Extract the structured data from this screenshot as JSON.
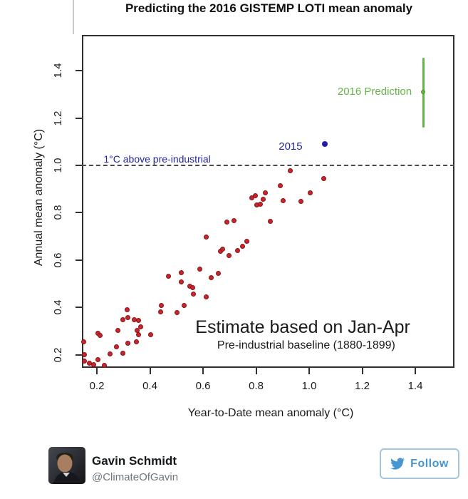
{
  "chart_data": {
    "type": "scatter",
    "title": "Predicting the 2016 GISTEMP LOTI mean anomaly",
    "xlabel": "Year-to-Date mean anomaly (°C)",
    "ylabel": "Annual mean anomaly (°C)",
    "xlim": [
      0.145,
      1.55
    ],
    "ylim": [
      0.145,
      1.55
    ],
    "x_ticks": [
      0.2,
      0.4,
      0.6,
      0.8,
      1.0,
      1.2,
      1.4
    ],
    "y_ticks": [
      0.2,
      0.4,
      0.6,
      0.8,
      1.0,
      1.2,
      1.4
    ],
    "grid": false,
    "legend_position": "none",
    "reference_line": {
      "y": 1.0,
      "style": "dashed",
      "color": "#4a4a4a",
      "label": "1°C above pre-industrial"
    },
    "series": [
      {
        "name": "historical-years",
        "color": "#c9252c",
        "marker": "circle",
        "points": [
          [
            0.785,
            0.864
          ],
          [
            0.796,
            0.871
          ],
          [
            0.834,
            0.883
          ],
          [
            0.828,
            0.858
          ],
          [
            0.804,
            0.834
          ],
          [
            0.815,
            0.837
          ],
          [
            0.93,
            0.976
          ],
          [
            1.054,
            0.943
          ],
          [
            0.89,
            0.913
          ],
          [
            0.901,
            0.852
          ],
          [
            0.968,
            0.849
          ],
          [
            1.003,
            0.883
          ],
          [
            0.855,
            0.765
          ],
          [
            0.764,
            0.678
          ],
          [
            0.691,
            0.762
          ],
          [
            0.718,
            0.768
          ],
          [
            0.611,
            0.696
          ],
          [
            0.667,
            0.636
          ],
          [
            0.675,
            0.645
          ],
          [
            0.699,
            0.62
          ],
          [
            0.729,
            0.639
          ],
          [
            0.748,
            0.657
          ],
          [
            0.587,
            0.563
          ],
          [
            0.659,
            0.545
          ],
          [
            0.63,
            0.527
          ],
          [
            0.471,
            0.533
          ],
          [
            0.519,
            0.548
          ],
          [
            0.517,
            0.509
          ],
          [
            0.549,
            0.488
          ],
          [
            0.56,
            0.482
          ],
          [
            0.565,
            0.455
          ],
          [
            0.611,
            0.443
          ],
          [
            0.444,
            0.407
          ],
          [
            0.439,
            0.38
          ],
          [
            0.528,
            0.407
          ],
          [
            0.501,
            0.377
          ],
          [
            0.315,
            0.389
          ],
          [
            0.297,
            0.349
          ],
          [
            0.318,
            0.358
          ],
          [
            0.34,
            0.349
          ],
          [
            0.356,
            0.346
          ],
          [
            0.366,
            0.319
          ],
          [
            0.278,
            0.304
          ],
          [
            0.205,
            0.292
          ],
          [
            0.213,
            0.283
          ],
          [
            0.353,
            0.304
          ],
          [
            0.358,
            0.286
          ],
          [
            0.404,
            0.286
          ],
          [
            0.149,
            0.256
          ],
          [
            0.35,
            0.256
          ],
          [
            0.318,
            0.247
          ],
          [
            0.275,
            0.232
          ],
          [
            0.251,
            0.202
          ],
          [
            0.299,
            0.205
          ],
          [
            0.154,
            0.199
          ],
          [
            0.152,
            0.172
          ],
          [
            0.173,
            0.163
          ],
          [
            0.203,
            0.178
          ],
          [
            0.189,
            0.157
          ],
          [
            0.227,
            0.154
          ]
        ]
      },
      {
        "name": "year-2015",
        "label": "2015",
        "color": "#2121a8",
        "marker": "circle",
        "points": [
          [
            1.06,
            1.09
          ]
        ]
      },
      {
        "name": "prediction-2016",
        "label": "2016 Prediction",
        "color": "#64b446",
        "marker": "circle-with-error-bar",
        "point": [
          1.43,
          1.31
        ],
        "error_range": [
          1.16,
          1.455
        ]
      }
    ],
    "annotations": [
      {
        "name": "ref-line-label",
        "text": "1°C above pre-industrial",
        "x": 0.427,
        "y": 1.027,
        "color": "#24249c",
        "size": 14,
        "weight": "normal"
      },
      {
        "name": "2015-label",
        "text": "2015",
        "x": 0.93,
        "y": 1.077,
        "color": "#24249c",
        "size": 15,
        "weight": "normal"
      },
      {
        "name": "2016-prediction-label",
        "text": "2016 Prediction",
        "x": 1.247,
        "y": 1.31,
        "color": "#64b446",
        "size": 15,
        "weight": "normal"
      },
      {
        "name": "estimate-note",
        "text": "Estimate based on Jan-Apr",
        "x": 0.976,
        "y": 0.313,
        "color": "#1a1a1a",
        "size": 25,
        "weight": "normal"
      },
      {
        "name": "baseline-note",
        "text": "Pre-industrial baseline (1880-1899)",
        "x": 0.989,
        "y": 0.238,
        "color": "#1a1a1a",
        "size": 16,
        "weight": "normal"
      }
    ]
  },
  "footer": {
    "name": "Gavin Schmidt",
    "handle": "@ClimateOfGavin",
    "follow_label": "Follow",
    "accent_color": "#4596d3"
  }
}
